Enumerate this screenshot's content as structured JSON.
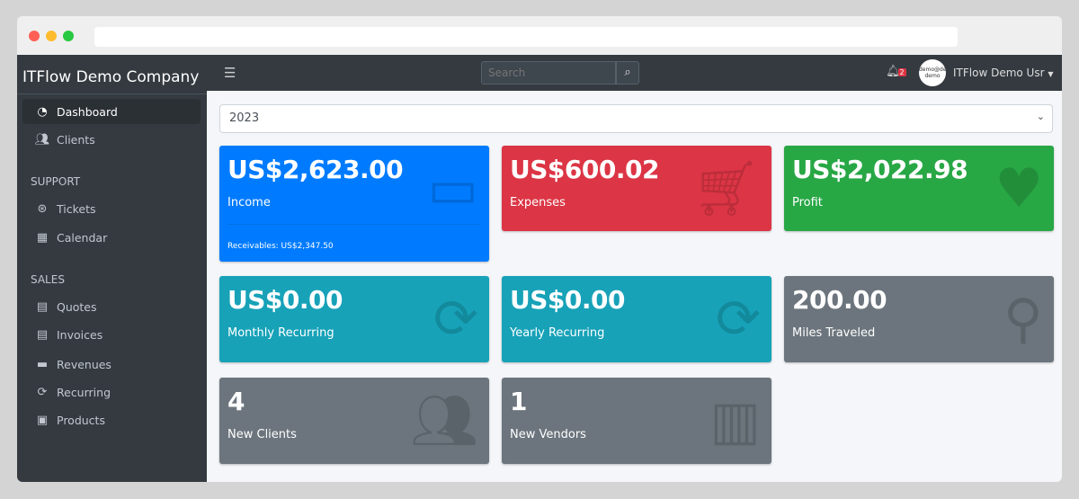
{
  "window": {
    "traffic_colors": [
      "#ff5f57",
      "#febc2e",
      "#28c840"
    ]
  },
  "sidebar": {
    "brand": "ITFlow Demo Company",
    "items": [
      {
        "label": "Dashboard",
        "icon": "tachometer-icon",
        "active": true
      },
      {
        "label": "Clients",
        "icon": "users-icon"
      }
    ],
    "support": {
      "header": "SUPPORT",
      "items": [
        {
          "label": "Tickets",
          "icon": "life-ring-icon"
        },
        {
          "label": "Calendar",
          "icon": "calendar-icon"
        }
      ]
    },
    "sales": {
      "header": "SALES",
      "items": [
        {
          "label": "Quotes",
          "icon": "file-icon"
        },
        {
          "label": "Invoices",
          "icon": "invoice-icon"
        },
        {
          "label": "Revenues",
          "icon": "credit-card-icon"
        },
        {
          "label": "Recurring",
          "icon": "sync-icon"
        },
        {
          "label": "Products",
          "icon": "box-icon"
        }
      ]
    }
  },
  "topbar": {
    "search_placeholder": "Search",
    "notifications": "2",
    "avatar_text": "demo@demo demo",
    "user": "ITFlow Demo Usr"
  },
  "year_select": "2023",
  "cards": [
    {
      "value": "US$2,623.00",
      "label": "Income",
      "footer": "Receivables: US$2,347.50",
      "color": "#007bff",
      "icon": "credit-card-icon"
    },
    {
      "value": "US$600.02",
      "label": "Expenses",
      "color": "#dc3545",
      "icon": "shopping-cart-icon"
    },
    {
      "value": "US$2,022.98",
      "label": "Profit",
      "color": "#28a745",
      "icon": "heart-icon"
    },
    {
      "value": "US$0.00",
      "label": "Monthly Recurring",
      "color": "#17a2b8",
      "icon": "sync-icon"
    },
    {
      "value": "US$0.00",
      "label": "Yearly Recurring",
      "color": "#17a2b8",
      "icon": "sync-icon"
    },
    {
      "value": "200.00",
      "label": "Miles Traveled",
      "color": "#6c757d",
      "icon": "route-icon"
    },
    {
      "value": "4",
      "label": "New Clients",
      "color": "#6c757d",
      "icon": "users-icon"
    },
    {
      "value": "1",
      "label": "New Vendors",
      "color": "#6c757d",
      "icon": "building-icon"
    }
  ]
}
